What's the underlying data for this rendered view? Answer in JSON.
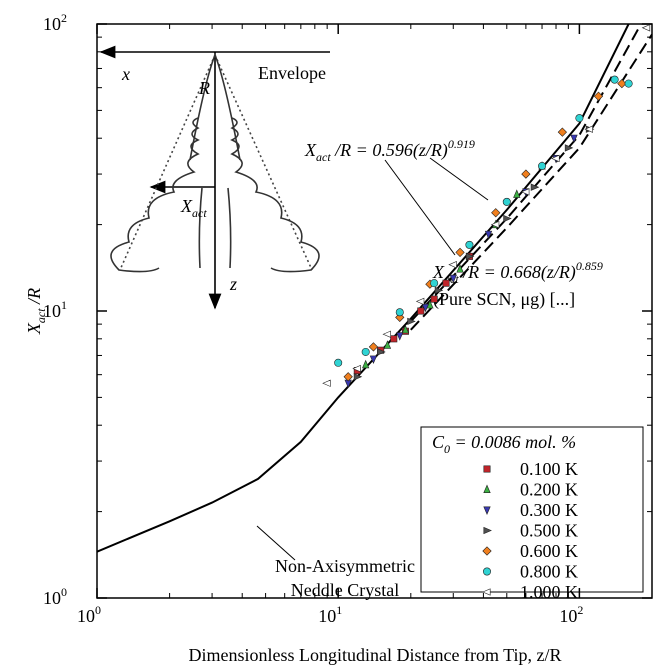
{
  "chart_data": {
    "type": "scatter",
    "x_label": "Dimensionless Longitudinal Distance from Tip, z/R",
    "y_label": "X_{act} /R",
    "xlog": true,
    "ylog": true,
    "xlim": [
      1,
      200
    ],
    "ylim": [
      1,
      100
    ],
    "xticks": [
      {
        "value": 1,
        "label": "10^{0}"
      },
      {
        "value": 10,
        "label": "10^{1}"
      },
      {
        "value": 100,
        "label": "10^{2}"
      }
    ],
    "yticks": [
      {
        "value": 1,
        "label": "10^{0}"
      },
      {
        "value": 10,
        "label": "10^{1}"
      },
      {
        "value": 100,
        "label": "10^{2}"
      }
    ],
    "xminorticks": [
      2,
      3,
      4,
      5,
      6,
      7,
      8,
      9,
      20,
      30,
      40,
      50,
      60,
      70,
      80,
      90
    ],
    "yminorticks": [
      2,
      3,
      4,
      5,
      6,
      7,
      8,
      9,
      20,
      30,
      40,
      50,
      60,
      70,
      80,
      90
    ],
    "legend_title": "C_{0} = 0.0086 mol. %",
    "legend_position": "lower right",
    "series": [
      {
        "name": "0.100 K",
        "color": "#c0242a",
        "marker": "square",
        "x": [
          12,
          15,
          17,
          19,
          22,
          25,
          28,
          35
        ],
        "y": [
          6.2,
          7.3,
          8.0,
          8.5,
          10.0,
          11.0,
          12.5,
          15.5
        ]
      },
      {
        "name": "0.200 K",
        "color": "#3cb043",
        "marker": "triangle-up",
        "x": [
          13,
          16,
          19,
          24,
          32,
          45,
          55,
          70
        ],
        "y": [
          6.5,
          7.6,
          8.6,
          10.5,
          14,
          20,
          25.5,
          32
        ]
      },
      {
        "name": "0.300 K",
        "color": "#3838b0",
        "marker": "triangle-down",
        "x": [
          11,
          14,
          18,
          23,
          30,
          42,
          60,
          80,
          95
        ],
        "y": [
          5.6,
          6.8,
          8.2,
          10.3,
          13,
          18.5,
          26,
          34,
          40
        ]
      },
      {
        "name": "0.500 K",
        "color": "#505050",
        "marker": "triangle-right",
        "x": [
          12,
          15,
          20,
          26,
          35,
          50,
          65,
          90,
          110
        ],
        "y": [
          5.9,
          7.2,
          9.2,
          11.8,
          15.5,
          21,
          27,
          37,
          43
        ]
      },
      {
        "name": "0.600 K",
        "color": "#f07f1e",
        "marker": "diamond",
        "x": [
          11,
          14,
          18,
          24,
          32,
          45,
          60,
          85,
          120,
          150
        ],
        "y": [
          5.9,
          7.5,
          9.5,
          12.4,
          16,
          22,
          30,
          42,
          56,
          62
        ]
      },
      {
        "name": "0.800 K",
        "color": "#2fd3d3",
        "marker": "circle",
        "x": [
          10,
          13,
          18,
          25,
          35,
          50,
          70,
          100,
          140,
          160
        ],
        "y": [
          6.6,
          7.2,
          9.9,
          12.5,
          17,
          24,
          32,
          47,
          64,
          62
        ]
      },
      {
        "name": "1.000 K",
        "color": "#ffffff",
        "marker": "triangle-left",
        "x": [
          9,
          12,
          16,
          22,
          30,
          45,
          60,
          80,
          110,
          190
        ],
        "y": [
          5.6,
          6.3,
          8.3,
          10.8,
          14.5,
          20,
          26,
          34,
          43,
          97
        ]
      }
    ],
    "curves": [
      {
        "style": "solid",
        "x": [
          1,
          2,
          3,
          4.65,
          7,
          10,
          20,
          50,
          100,
          160
        ],
        "y": [
          1.45,
          1.85,
          2.15,
          2.6,
          3.5,
          5.0,
          9.4,
          22.5,
          45,
          100
        ]
      },
      {
        "style": "dashed",
        "x": [
          20,
          50,
          100,
          180
        ],
        "y": [
          9.2,
          21,
          41,
          100
        ]
      },
      {
        "style": "dashed",
        "x": [
          20,
          50,
          100,
          200
        ],
        "y": [
          8.6,
          19.5,
          37,
          92
        ]
      }
    ],
    "annotations": [
      "X_{act} /R = 0.596(z/R)^{0.919}",
      "X_{act} /R = 0.668(z/R)^{0.859}",
      "(Pure SCN, μg) [...]",
      "Non-Axisymmetric",
      "Neddle Crystal"
    ],
    "inset_labels": {
      "x": "x",
      "R": "R",
      "envelope": "Envelope",
      "xact": "X_{act}",
      "z": "z"
    }
  }
}
